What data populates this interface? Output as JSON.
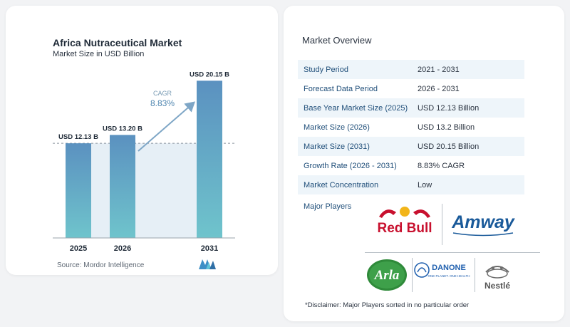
{
  "chart_card": {
    "title": "Africa Nutraceutical Market",
    "subtitle": "Market Size in USD Billion",
    "source": "Source:  Mordor Intelligence"
  },
  "chart_data": {
    "type": "bar",
    "title": "Africa Nutraceutical Market",
    "subtitle": "Market Size in USD Billion",
    "categories": [
      "2025",
      "2026",
      "2031"
    ],
    "values": [
      12.13,
      13.2,
      20.15
    ],
    "data_labels": [
      "USD 12.13 B",
      "USD 13.20 B",
      "USD 20.15 B"
    ],
    "cagr_label": "CAGR",
    "cagr_value": "8.83%",
    "ylim": [
      0,
      21
    ],
    "grid": false,
    "bar_colors": [
      "#5f97c4",
      "#5f97c4",
      "#5f97c4"
    ],
    "band_color": "#e6eff6"
  },
  "overview": {
    "title": "Market Overview",
    "rows": [
      {
        "label": "Study Period",
        "value": "2021 - 2031"
      },
      {
        "label": "Forecast Data Period",
        "value": "2026 - 2031"
      },
      {
        "label": "Base Year Market Size (2025)",
        "value": "USD 12.13 Billion"
      },
      {
        "label": "Market Size (2026)",
        "value": "USD 13.2 Billion"
      },
      {
        "label": "Market Size (2031)",
        "value": "USD 20.15 Billion"
      },
      {
        "label": "Growth Rate (2026 - 2031)",
        "value": "8.83% CAGR"
      },
      {
        "label": "Market Concentration",
        "value": "Low"
      }
    ],
    "major_players_label": "Major Players",
    "players": [
      "Red Bull",
      "Amway",
      "Arla",
      "DANONE",
      "Nestlé"
    ],
    "player_taglines": {
      "danone": "ONE PLANET. ONE HEALTH"
    },
    "disclaimer": "*Disclaimer: Major Players sorted in no particular order"
  },
  "colors": {
    "accent": "#1f4e79",
    "bar": "#5f97c4",
    "row_alt": "#eef5fa"
  }
}
